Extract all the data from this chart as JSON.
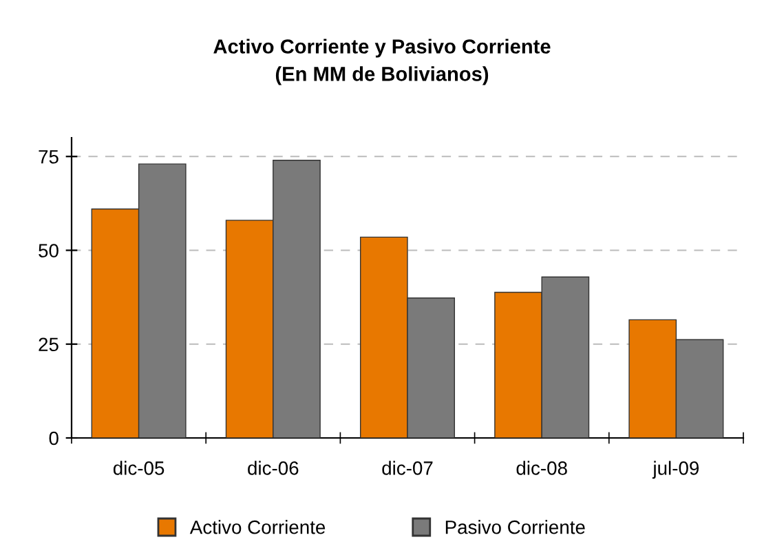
{
  "chart_data": {
    "type": "bar",
    "title": "Activo Corriente y Pasivo Corriente\n(En MM de Bolivianos)",
    "categories": [
      "dic-05",
      "dic-06",
      "dic-07",
      "dic-08",
      "jul-09"
    ],
    "series": [
      {
        "name": "Activo Corriente",
        "color": "#e87800",
        "values": [
          61,
          58,
          53.5,
          38.8,
          31.5
        ]
      },
      {
        "name": "Pasivo Corriente",
        "color": "#7a7a7a",
        "values": [
          73,
          74,
          37.3,
          42.9,
          26.2
        ]
      }
    ],
    "ylim": [
      0,
      80
    ],
    "yticks": [
      0,
      25,
      50,
      75
    ],
    "grid": "y",
    "legend": "bottom"
  }
}
